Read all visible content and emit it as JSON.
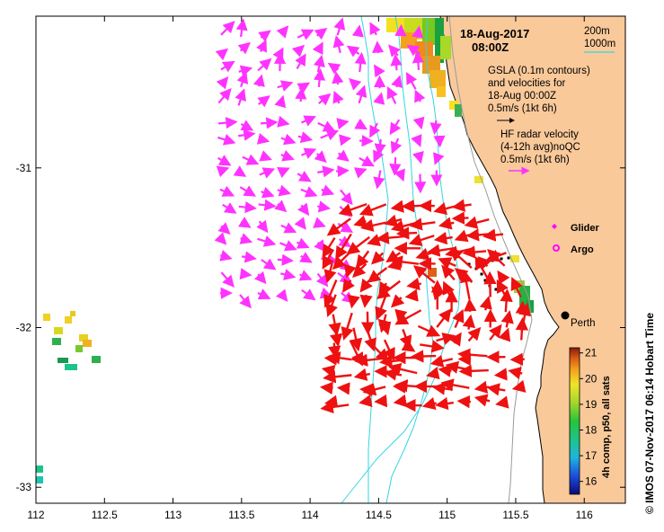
{
  "map": {
    "date_line": "18-Aug-2017",
    "time_line": "08:00Z",
    "contour_legend": {
      "shallow": "200m",
      "deep": "1000m",
      "deep_color": "#33d6e0",
      "shallow_color": "#9a9a9a"
    },
    "gsla_note": [
      "GSLA (0.1m contours)",
      "and velocities for",
      "18-Aug 00:00Z",
      "0.5m/s (1kt 6h)"
    ],
    "hf_note": [
      "HF radar velocity",
      "(4-12h avg)noQC",
      "0.5m/s (1kt 6h)"
    ],
    "legend": {
      "glider": "Glider",
      "argo": "Argo",
      "glider_color": "#ff00ff",
      "argo_color": "#ff00ff"
    },
    "city": {
      "name": "Perth",
      "lon": 115.86,
      "lat": -31.95
    },
    "x_ticks": [
      "112",
      "112.5",
      "113",
      "113.5",
      "114",
      "114.5",
      "115",
      "115.5",
      "116"
    ],
    "y_ticks": [
      "-31",
      "-32",
      "-33"
    ],
    "lon_range": [
      112.0,
      116.3
    ],
    "lat_range": [
      -33.1,
      -30.05
    ],
    "land_color": "#f9c99a",
    "vector_colors": {
      "altimetry": "#ff33ff",
      "hf_radar": "#ee1111"
    }
  },
  "colorbar": {
    "label": "4h comp, p50, all sats",
    "ticks": [
      "21",
      "20",
      "19",
      "18",
      "17",
      "16"
    ],
    "min": 15.5,
    "max": 21.2
  },
  "sidebar_text": "© IMOS 07-Nov-2017 06:14 Hobart Time"
}
